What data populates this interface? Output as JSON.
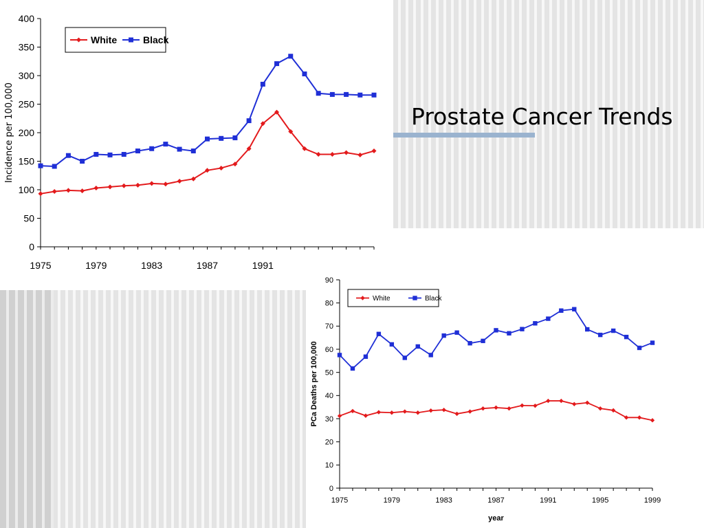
{
  "slide": {
    "title": "Prostate Cancer Trends"
  },
  "colors": {
    "white_series": "#e31a1c",
    "black_series": "#1f2fd6",
    "accent_bar": "#9ab3cf"
  },
  "chart_data": [
    {
      "type": "line",
      "title": "",
      "xlabel": "",
      "ylabel": "Incidence per 100,000",
      "xlim": [
        1975,
        1999
      ],
      "ylim": [
        0,
        400
      ],
      "yticks": [
        0,
        50,
        100,
        150,
        200,
        250,
        300,
        350,
        400
      ],
      "xtick_labels": [
        "1975",
        "1979",
        "1983",
        "1987",
        "1991"
      ],
      "legend_position": "top-left",
      "grid": false,
      "x": [
        1975,
        1976,
        1977,
        1978,
        1979,
        1980,
        1981,
        1982,
        1983,
        1984,
        1985,
        1986,
        1987,
        1988,
        1989,
        1990,
        1991,
        1992,
        1993,
        1994,
        1995,
        1996,
        1997,
        1998,
        1999
      ],
      "series": [
        {
          "name": "White",
          "marker": "diamond",
          "values": [
            93,
            97,
            99,
            98,
            103,
            105,
            107,
            108,
            111,
            110,
            115,
            119,
            134,
            138,
            145,
            172,
            216,
            236,
            202,
            172,
            162,
            162,
            165,
            161,
            168
          ]
        },
        {
          "name": "Black",
          "marker": "square",
          "values": [
            142,
            141,
            160,
            150,
            162,
            161,
            162,
            168,
            172,
            180,
            171,
            168,
            189,
            190,
            191,
            221,
            285,
            321,
            334,
            303,
            269,
            267,
            267,
            266,
            266
          ]
        }
      ]
    },
    {
      "type": "line",
      "title": "",
      "xlabel": "year",
      "ylabel": "PCa Deaths per 100,000",
      "xlim": [
        1975,
        1999
      ],
      "ylim": [
        0,
        90
      ],
      "yticks": [
        0,
        10,
        20,
        30,
        40,
        50,
        60,
        70,
        80,
        90
      ],
      "xtick_labels": [
        "1975",
        "1979",
        "1983",
        "1987",
        "1991",
        "1995",
        "1999"
      ],
      "legend_position": "top-left",
      "grid": false,
      "x": [
        1975,
        1976,
        1977,
        1978,
        1979,
        1980,
        1981,
        1982,
        1983,
        1984,
        1985,
        1986,
        1987,
        1988,
        1989,
        1990,
        1991,
        1992,
        1993,
        1994,
        1995,
        1996,
        1997,
        1998,
        1999
      ],
      "series": [
        {
          "name": "White",
          "marker": "diamond",
          "values": [
            31.2,
            33.3,
            31.3,
            32.8,
            32.6,
            33.1,
            32.6,
            33.5,
            33.8,
            32.1,
            33.1,
            34.4,
            34.8,
            34.4,
            35.7,
            35.6,
            37.7,
            37.7,
            36.3,
            36.9,
            34.4,
            33.6,
            30.5,
            30.5,
            29.3
          ]
        },
        {
          "name": "Black",
          "marker": "square",
          "values": [
            57.5,
            51.7,
            56.8,
            66.6,
            62.1,
            56.3,
            61.2,
            57.5,
            65.9,
            67.2,
            62.6,
            63.6,
            68.2,
            66.9,
            68.7,
            71.2,
            73.2,
            76.7,
            77.3,
            68.6,
            66.2,
            68.0,
            65.3,
            60.6,
            62.8
          ]
        }
      ]
    }
  ]
}
